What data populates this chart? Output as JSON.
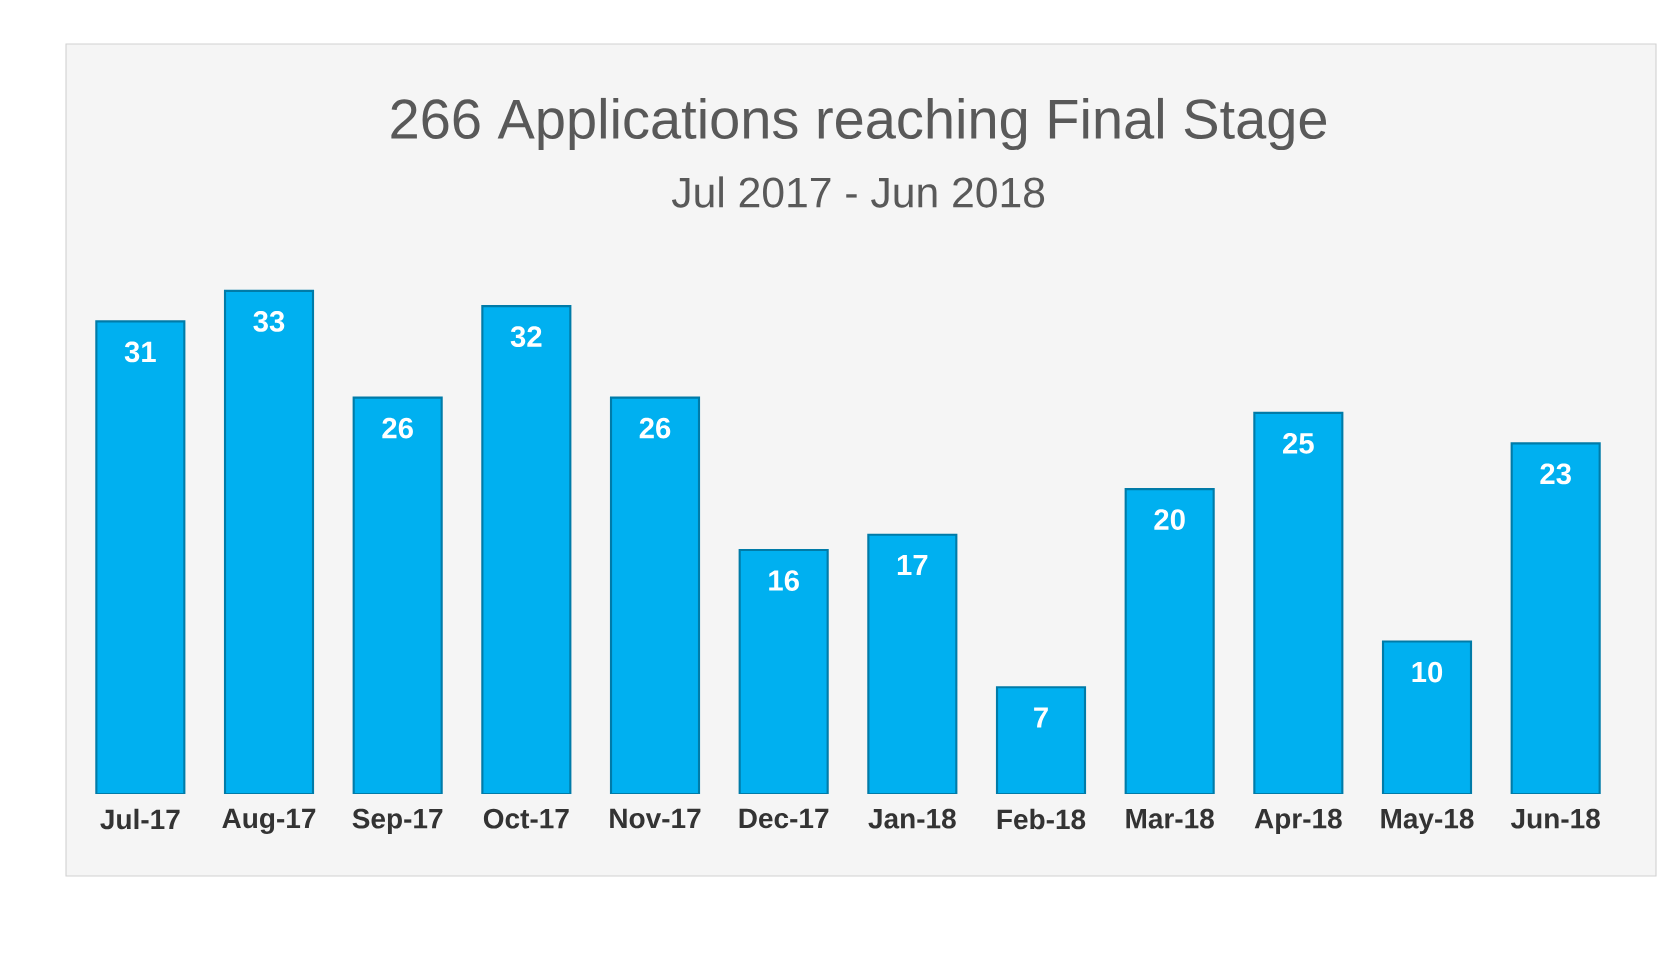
{
  "chart_data": {
    "type": "bar",
    "title": "266 Applications reaching Final Stage",
    "subtitle": "Jul 2017 - Jun 2018",
    "categories": [
      "Jul-17",
      "Aug-17",
      "Sep-17",
      "Oct-17",
      "Nov-17",
      "Dec-17",
      "Jan-18",
      "Feb-18",
      "Mar-18",
      "Apr-18",
      "May-18",
      "Jun-18"
    ],
    "values": [
      31,
      33,
      26,
      32,
      26,
      16,
      17,
      7,
      20,
      25,
      10,
      23
    ],
    "color": "#00b0f0",
    "data_labels": true
  }
}
